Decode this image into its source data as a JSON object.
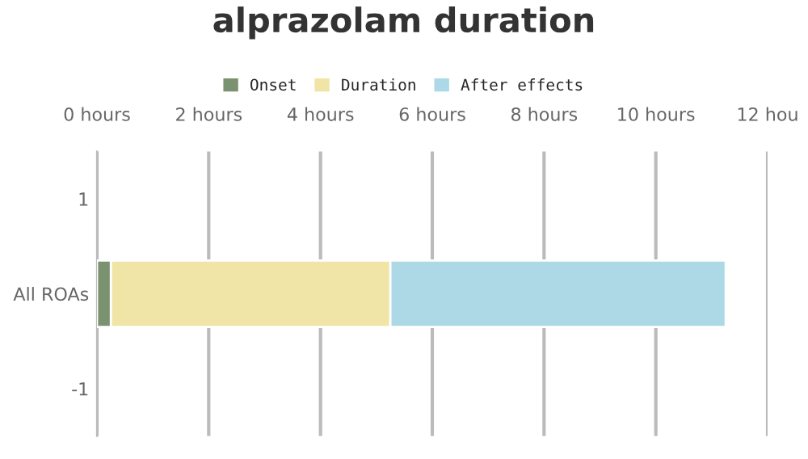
{
  "chart_data": {
    "type": "bar",
    "title": "alprazolam duration",
    "orientation": "horizontal",
    "stacked": true,
    "x": [
      0
    ],
    "series": [
      {
        "name": "Onset",
        "color": "#7b9270",
        "values": [
          0.25
        ]
      },
      {
        "name": "Duration",
        "color": "#f0e4a6",
        "values": [
          5
        ]
      },
      {
        "name": "After effects",
        "color": "#add8e6",
        "values": [
          6
        ]
      }
    ],
    "xlim": [
      0,
      12
    ],
    "xticks": [
      {
        "value": 0,
        "label": "0 hours"
      },
      {
        "value": 2,
        "label": "2 hours"
      },
      {
        "value": 4,
        "label": "4 hours"
      },
      {
        "value": 6,
        "label": "6 hours"
      },
      {
        "value": 8,
        "label": "8 hours"
      },
      {
        "value": 10,
        "label": "10 hours"
      },
      {
        "value": 12,
        "label": "12 hou"
      }
    ],
    "ylim": [
      -1.5,
      1.5
    ],
    "yticks": [
      1,
      {
        "value": 0,
        "label": "All ROAs"
      },
      -1
    ],
    "grid": "x",
    "legend": "top"
  }
}
